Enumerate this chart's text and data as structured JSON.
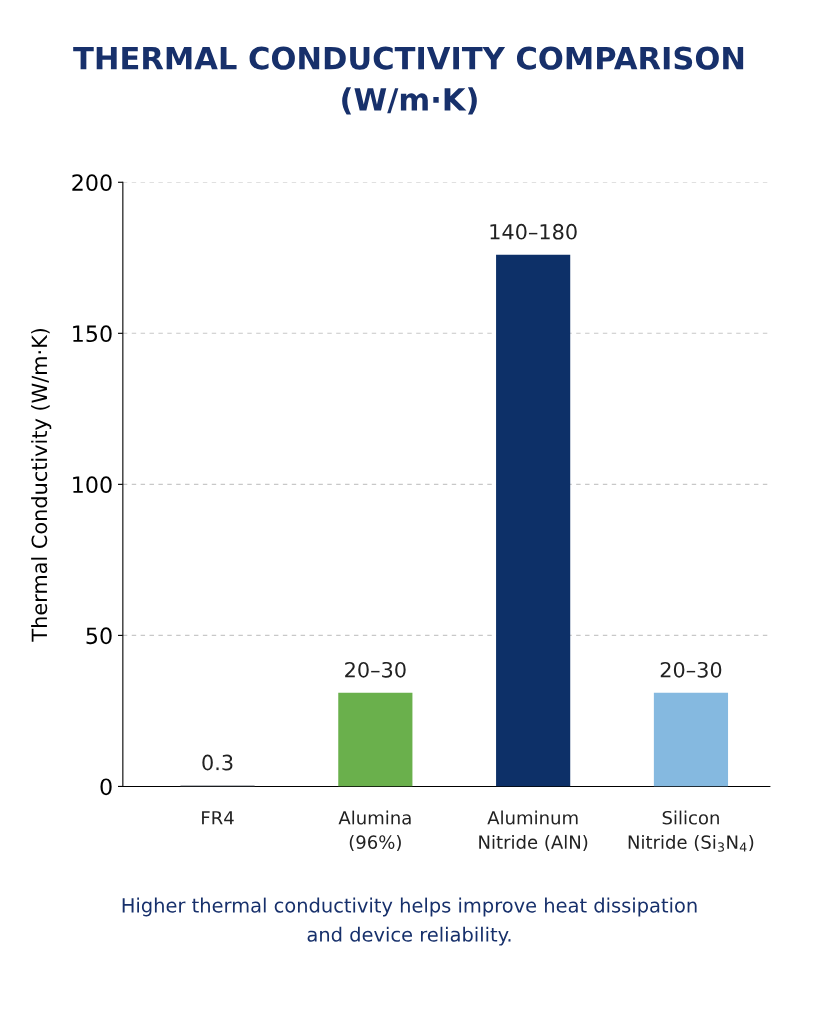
{
  "chart_data": {
    "type": "bar",
    "title": "THERMAL CONDUCTIVITY COMPARISON\n(W/m·K)",
    "ylabel": "Thermal Conductivity (W/m·K)",
    "categories": [
      "FR4",
      "Alumina\n(96%)",
      "Aluminum\nNitride (AlN)",
      "Silicon\nNitride (Si$_{3}$N$_{4}$)"
    ],
    "values": [
      0.3,
      31,
      176,
      31
    ],
    "colors": [
      "#6b7178",
      "#6ab04c",
      "#0d3068",
      "#85b9e0"
    ],
    "value_labels": [
      "0.3",
      "20–30",
      "140–180",
      "20–30"
    ],
    "ylim": [
      0,
      200
    ],
    "yticks": [
      0,
      50,
      100,
      150,
      200
    ],
    "grid": "y",
    "legend": false,
    "annotations": [
      "Higher thermal conductivity helps improve heat dissipation\nand device reliability."
    ]
  }
}
